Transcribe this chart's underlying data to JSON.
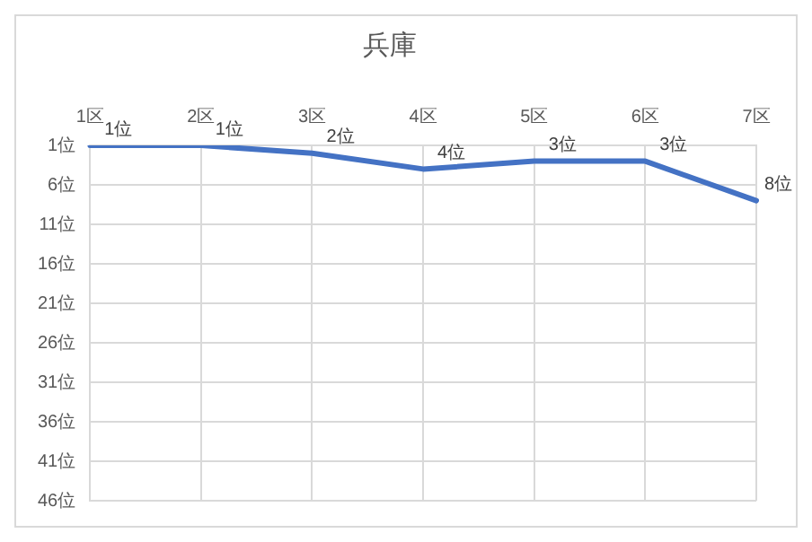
{
  "chart_data": {
    "type": "line",
    "title": "兵庫",
    "categories": [
      "1区",
      "2区",
      "3区",
      "4区",
      "5区",
      "6区",
      "7区"
    ],
    "series": [
      {
        "color": "#4472c4",
        "values": [
          1,
          1,
          2,
          4,
          3,
          3,
          8
        ],
        "value_labels": [
          "1位",
          "1位",
          "2位",
          "4位",
          "3位",
          "3位",
          "8位"
        ]
      }
    ],
    "ylim": [
      46,
      1
    ],
    "yticks": [
      {
        "value": 1,
        "label": "1位"
      },
      {
        "value": 6,
        "label": "6位"
      },
      {
        "value": 11,
        "label": "11位"
      },
      {
        "value": 16,
        "label": "16位"
      },
      {
        "value": 21,
        "label": "21位"
      },
      {
        "value": 26,
        "label": "26位"
      },
      {
        "value": 31,
        "label": "31位"
      },
      {
        "value": 36,
        "label": "36位"
      },
      {
        "value": 41,
        "label": "41位"
      },
      {
        "value": 46,
        "label": "46位"
      }
    ],
    "grid": true,
    "legend": false,
    "marker": "none",
    "line_style": "solid"
  }
}
